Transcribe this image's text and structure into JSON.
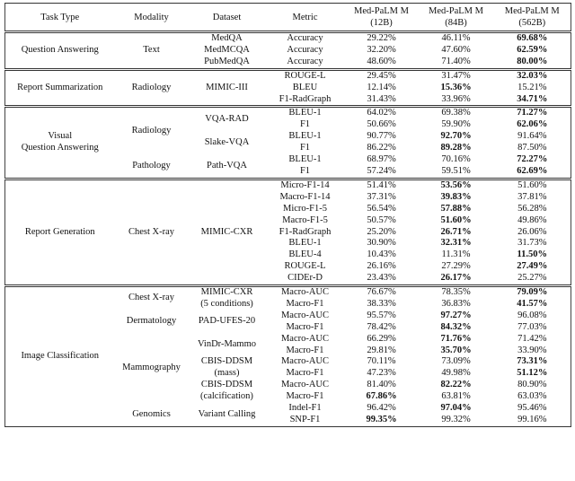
{
  "table": {
    "header": [
      "Task Type",
      "Modality",
      "Dataset",
      "Metric",
      "Med-PaLM M\n(12B)",
      "Med-PaLM M\n(84B)",
      "Med-PaLM M\n(562B)"
    ],
    "groups": [
      {
        "task": "Question Answering",
        "modalities": [
          {
            "modality": "Text",
            "datasets": [
              {
                "dataset": "MedQA",
                "rows": [
                  {
                    "metric": "Accuracy",
                    "values": [
                      "29.22%",
                      "46.11%",
                      "69.68%"
                    ],
                    "bold": 2
                  }
                ]
              },
              {
                "dataset": "MedMCQA",
                "rows": [
                  {
                    "metric": "Accuracy",
                    "values": [
                      "32.20%",
                      "47.60%",
                      "62.59%"
                    ],
                    "bold": 2
                  }
                ]
              },
              {
                "dataset": "PubMedQA",
                "rows": [
                  {
                    "metric": "Accuracy",
                    "values": [
                      "48.60%",
                      "71.40%",
                      "80.00%"
                    ],
                    "bold": 2
                  }
                ]
              }
            ]
          }
        ]
      },
      {
        "task": "Report Summarization",
        "modalities": [
          {
            "modality": "Radiology",
            "datasets": [
              {
                "dataset": "MIMIC-III",
                "rows": [
                  {
                    "metric": "ROUGE-L",
                    "values": [
                      "29.45%",
                      "31.47%",
                      "32.03%"
                    ],
                    "bold": 2
                  },
                  {
                    "metric": "BLEU",
                    "values": [
                      "12.14%",
                      "15.36%",
                      "15.21%"
                    ],
                    "bold": 1
                  },
                  {
                    "metric": "F1-RadGraph",
                    "values": [
                      "31.43%",
                      "33.96%",
                      "34.71%"
                    ],
                    "bold": 2
                  }
                ]
              }
            ]
          }
        ]
      },
      {
        "task": "Visual\nQuestion Answering",
        "modalities": [
          {
            "modality": "Radiology",
            "datasets": [
              {
                "dataset": "VQA-RAD",
                "rows": [
                  {
                    "metric": "BLEU-1",
                    "values": [
                      "64.02%",
                      "69.38%",
                      "71.27%"
                    ],
                    "bold": 2
                  },
                  {
                    "metric": "F1",
                    "values": [
                      "50.66%",
                      "59.90%",
                      "62.06%"
                    ],
                    "bold": 2
                  }
                ]
              },
              {
                "dataset": "Slake-VQA",
                "rows": [
                  {
                    "metric": "BLEU-1",
                    "values": [
                      "90.77%",
                      "92.70%",
                      "91.64%"
                    ],
                    "bold": 1
                  },
                  {
                    "metric": "F1",
                    "values": [
                      "86.22%",
                      "89.28%",
                      "87.50%"
                    ],
                    "bold": 1
                  }
                ]
              }
            ]
          },
          {
            "modality": "Pathology",
            "datasets": [
              {
                "dataset": "Path-VQA",
                "rows": [
                  {
                    "metric": "BLEU-1",
                    "values": [
                      "68.97%",
                      "70.16%",
                      "72.27%"
                    ],
                    "bold": 2
                  },
                  {
                    "metric": "F1",
                    "values": [
                      "57.24%",
                      "59.51%",
                      "62.69%"
                    ],
                    "bold": 2
                  }
                ]
              }
            ]
          }
        ]
      },
      {
        "task": "Report Generation",
        "modalities": [
          {
            "modality": "Chest X-ray",
            "datasets": [
              {
                "dataset": "MIMIC-CXR",
                "rows": [
                  {
                    "metric": "Micro-F1-14",
                    "values": [
                      "51.41%",
                      "53.56%",
                      "51.60%"
                    ],
                    "bold": 1
                  },
                  {
                    "metric": "Macro-F1-14",
                    "values": [
                      "37.31%",
                      "39.83%",
                      "37.81%"
                    ],
                    "bold": 1
                  },
                  {
                    "metric": "Micro-F1-5",
                    "values": [
                      "56.54%",
                      "57.88%",
                      "56.28%"
                    ],
                    "bold": 1
                  },
                  {
                    "metric": "Macro-F1-5",
                    "values": [
                      "50.57%",
                      "51.60%",
                      "49.86%"
                    ],
                    "bold": 1
                  },
                  {
                    "metric": "F1-RadGraph",
                    "values": [
                      "25.20%",
                      "26.71%",
                      "26.06%"
                    ],
                    "bold": 1
                  },
                  {
                    "metric": "BLEU-1",
                    "values": [
                      "30.90%",
                      "32.31%",
                      "31.73%"
                    ],
                    "bold": 1
                  },
                  {
                    "metric": "BLEU-4",
                    "values": [
                      "10.43%",
                      "11.31%",
                      "11.50%"
                    ],
                    "bold": 2
                  },
                  {
                    "metric": "ROUGE-L",
                    "values": [
                      "26.16%",
                      "27.29%",
                      "27.49%"
                    ],
                    "bold": 2
                  },
                  {
                    "metric": "CIDEr-D",
                    "values": [
                      "23.43%",
                      "26.17%",
                      "25.27%"
                    ],
                    "bold": 1
                  }
                ]
              }
            ]
          }
        ]
      },
      {
        "task": "Image Classification",
        "modalities": [
          {
            "modality": "Chest X-ray",
            "datasets": [
              {
                "dataset": "MIMIC-CXR\n(5 conditions)",
                "rows": [
                  {
                    "metric": "Macro-AUC",
                    "values": [
                      "76.67%",
                      "78.35%",
                      "79.09%"
                    ],
                    "bold": 2
                  },
                  {
                    "metric": "Macro-F1",
                    "values": [
                      "38.33%",
                      "36.83%",
                      "41.57%"
                    ],
                    "bold": 2
                  }
                ]
              }
            ]
          },
          {
            "modality": "Dermatology",
            "datasets": [
              {
                "dataset": "PAD-UFES-20",
                "rows": [
                  {
                    "metric": "Macro-AUC",
                    "values": [
                      "95.57%",
                      "97.27%",
                      "96.08%"
                    ],
                    "bold": 1
                  },
                  {
                    "metric": "Macro-F1",
                    "values": [
                      "78.42%",
                      "84.32%",
                      "77.03%"
                    ],
                    "bold": 1
                  }
                ]
              }
            ]
          },
          {
            "modality": "Mammography",
            "datasets": [
              {
                "dataset": "VinDr-Mammo",
                "rows": [
                  {
                    "metric": "Macro-AUC",
                    "values": [
                      "66.29%",
                      "71.76%",
                      "71.42%"
                    ],
                    "bold": 1
                  },
                  {
                    "metric": "Macro-F1",
                    "values": [
                      "29.81%",
                      "35.70%",
                      "33.90%"
                    ],
                    "bold": 1
                  }
                ]
              },
              {
                "dataset": "CBIS-DDSM\n(mass)",
                "rows": [
                  {
                    "metric": "Macro-AUC",
                    "values": [
                      "70.11%",
                      "73.09%",
                      "73.31%"
                    ],
                    "bold": 2
                  },
                  {
                    "metric": "Macro-F1",
                    "values": [
                      "47.23%",
                      "49.98%",
                      "51.12%"
                    ],
                    "bold": 2
                  }
                ]
              },
              {
                "dataset": "CBIS-DDSM\n(calcification)",
                "rows": [
                  {
                    "metric": "Macro-AUC",
                    "values": [
                      "81.40%",
                      "82.22%",
                      "80.90%"
                    ],
                    "bold": 1
                  },
                  {
                    "metric": "Macro-F1",
                    "values": [
                      "67.86%",
                      "63.81%",
                      "63.03%"
                    ],
                    "bold": 0
                  }
                ]
              }
            ]
          },
          {
            "modality": "Genomics",
            "datasets": [
              {
                "dataset": "Variant Calling",
                "rows": [
                  {
                    "metric": "Indel-F1",
                    "values": [
                      "96.42%",
                      "97.04%",
                      "95.46%"
                    ],
                    "bold": 1
                  },
                  {
                    "metric": "SNP-F1",
                    "values": [
                      "99.35%",
                      "99.32%",
                      "99.16%"
                    ],
                    "bold": 0
                  }
                ]
              }
            ]
          }
        ]
      }
    ]
  }
}
